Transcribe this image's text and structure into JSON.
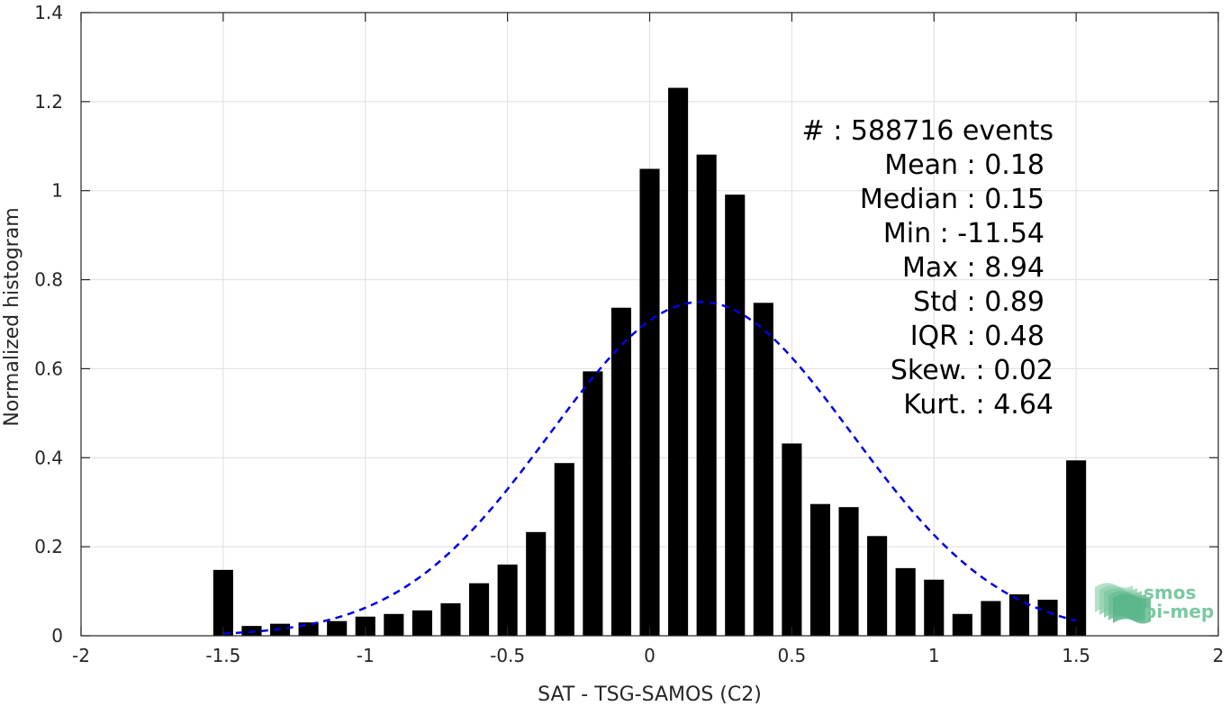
{
  "chart_data": {
    "type": "bar",
    "xlabel": "SAT - TSG-SAMOS (C2)",
    "ylabel": "Normalized histogram",
    "xlim": [
      -2,
      2
    ],
    "ylim": [
      0,
      1.4
    ],
    "x_ticks": [
      -2,
      -1.5,
      -1,
      -0.5,
      0,
      0.5,
      1,
      1.5,
      2
    ],
    "x_tick_labels": [
      "-2",
      "-1.5",
      "-1",
      "-0.5",
      "0",
      "0.5",
      "1",
      "1.5",
      "2"
    ],
    "y_ticks": [
      0,
      0.2,
      0.4,
      0.6,
      0.8,
      1,
      1.2,
      1.4
    ],
    "y_tick_labels": [
      "0",
      "0.2",
      "0.4",
      "0.6",
      "0.8",
      "1",
      "1.2",
      "1.4"
    ],
    "grid": true,
    "bar_color": "#000000",
    "bar_width": 0.07,
    "x": [
      -1.5,
      -1.4,
      -1.3,
      -1.2,
      -1.1,
      -1.0,
      -0.9,
      -0.8,
      -0.7,
      -0.6,
      -0.5,
      -0.4,
      -0.3,
      -0.2,
      -0.1,
      0.0,
      0.1,
      0.2,
      0.3,
      0.4,
      0.5,
      0.6,
      0.7,
      0.8,
      0.9,
      1.0,
      1.1,
      1.2,
      1.3,
      1.4,
      1.5
    ],
    "values": [
      0.148,
      0.022,
      0.027,
      0.03,
      0.033,
      0.043,
      0.049,
      0.057,
      0.073,
      0.118,
      0.16,
      0.233,
      0.388,
      0.594,
      0.737,
      1.049,
      1.231,
      1.081,
      0.991,
      0.748,
      0.432,
      0.296,
      0.289,
      0.224,
      0.152,
      0.126,
      0.049,
      0.078,
      0.093,
      0.081,
      0.394
    ],
    "fit_curve": {
      "type": "gaussian",
      "mean": 0.18,
      "std": 0.53,
      "peak": 0.75,
      "x_range": [
        -1.5,
        1.5
      ],
      "color": "#0000e0",
      "style": "dashed"
    },
    "annotation_lines": [
      "#  : 588716 events",
      "Mean : 0.18",
      "Median : 0.15",
      "Min : -11.54",
      "Max : 8.94",
      "Std : 0.89",
      "IQR : 0.48",
      "Skew. : 0.02",
      "Kurt. : 4.64"
    ]
  },
  "logo": {
    "line1": "smos",
    "line2": "pi-mep",
    "color": "#7cc8a2"
  }
}
